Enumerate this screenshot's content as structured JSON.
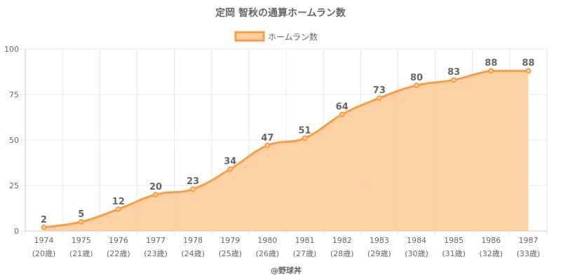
{
  "chart_data": {
    "type": "area",
    "title": "定岡 智秋の通算ホームラン数",
    "series": [
      {
        "name": "ホームラン数",
        "values": [
          2,
          5,
          12,
          20,
          23,
          34,
          47,
          51,
          64,
          73,
          80,
          83,
          88,
          88
        ]
      }
    ],
    "categories": [
      "1974",
      "1975",
      "1976",
      "1977",
      "1978",
      "1979",
      "1980",
      "1981",
      "1982",
      "1983",
      "1984",
      "1985",
      "1986",
      "1987"
    ],
    "category_sublabels": [
      "(20歳)",
      "(21歳)",
      "(22歳)",
      "(23歳)",
      "(24歳)",
      "(25歳)",
      "(26歳)",
      "(27歳)",
      "(28歳)",
      "(29歳)",
      "(30歳)",
      "(31歳)",
      "(32歳)",
      "(33歳)"
    ],
    "ylim": [
      0,
      100
    ],
    "yticks": [
      0,
      25,
      50,
      75,
      100
    ],
    "grid": true,
    "legend_position": "top",
    "colors": {
      "line": "#f79d49",
      "fill": "#fecfa0",
      "grid": "#e6e6e6",
      "text": "#666666"
    },
    "credit": "@野球丼"
  }
}
